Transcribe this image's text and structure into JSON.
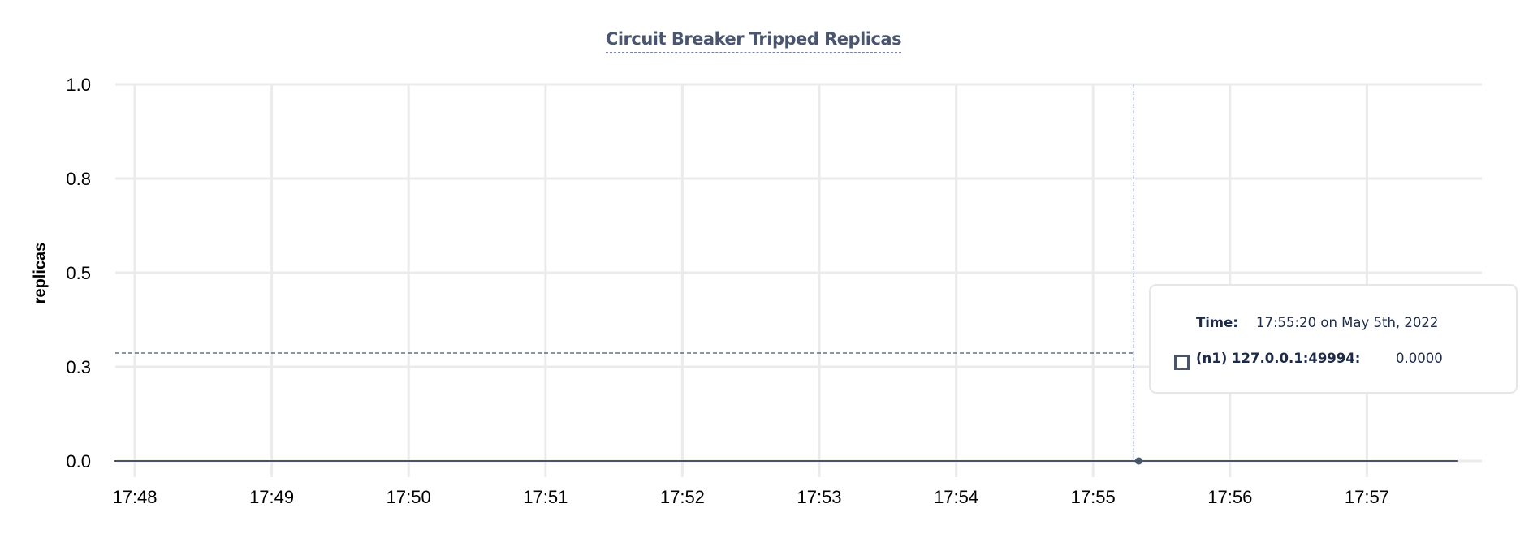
{
  "chart_data": {
    "type": "line",
    "title": "Circuit Breaker Tripped Replicas",
    "xlabel": "",
    "ylabel": "replicas",
    "x_ticks": [
      "17:48",
      "17:49",
      "17:50",
      "17:51",
      "17:52",
      "17:53",
      "17:54",
      "17:55",
      "17:56",
      "17:57"
    ],
    "y_ticks": [
      "1.0",
      "0.8",
      "0.5",
      "0.3",
      "0.0"
    ],
    "ylim": [
      0,
      1
    ],
    "xlim": [
      "17:47:51",
      "17:58:40"
    ],
    "grid": true,
    "series": [
      {
        "name": "(n1) 127.0.0.1:49994",
        "color": "#475469",
        "points": [
          {
            "x": "17:47:51",
            "y": 0
          },
          {
            "x": "17:55:20",
            "y": 0
          },
          {
            "x": "17:57:40",
            "y": 0
          }
        ]
      }
    ],
    "hover": {
      "x": "17:55:20",
      "y": 0
    }
  },
  "tooltip": {
    "time_label": "Time:",
    "time_value": "17:55:20 on May 5th, 2022",
    "series_label": "(n1) 127.0.0.1:49994:",
    "series_value": "0.0000"
  },
  "colors": {
    "series": "#475469",
    "grid": "#ebebeb",
    "title": "#4a5670",
    "tooltip_text": "#1d2a48"
  }
}
